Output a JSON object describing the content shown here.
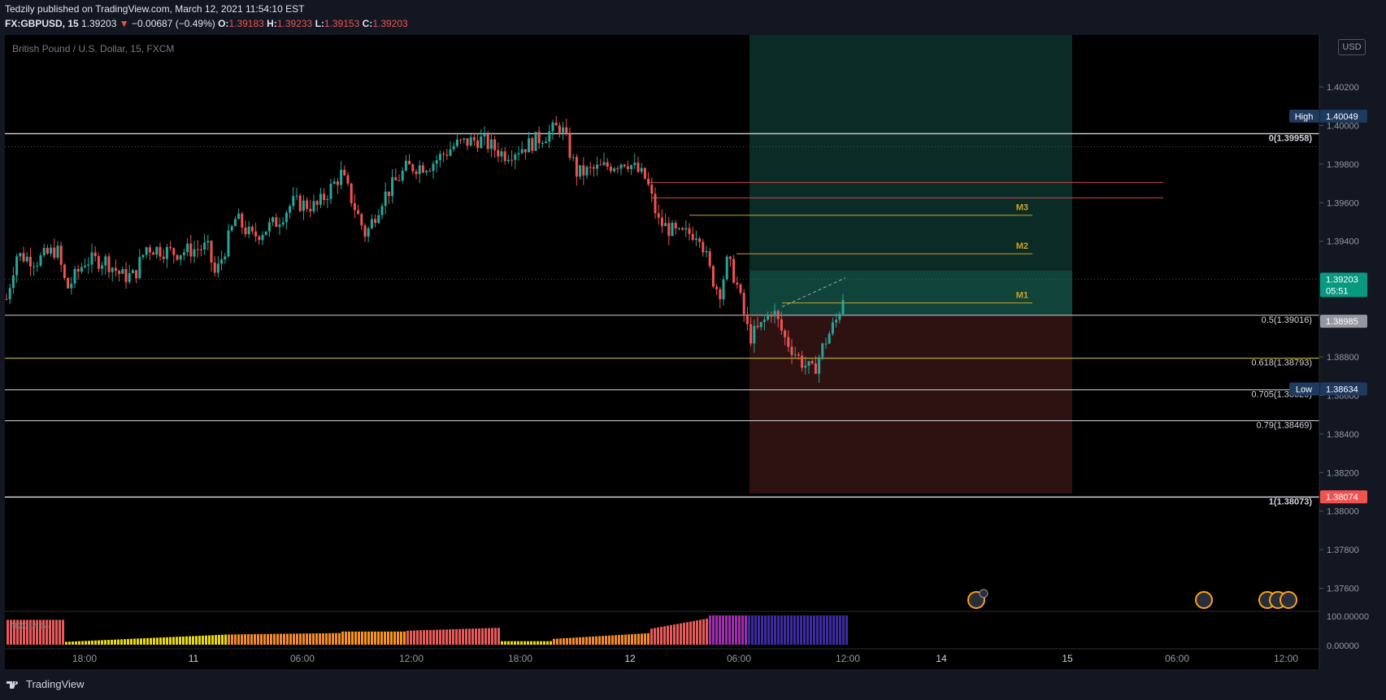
{
  "header": {
    "publisher": "Tedzily",
    "published_on": " published on TradingView.com, March 12, 2021 11:54:10 EST",
    "symbol": "FX:GBPUSD, 15",
    "last": "1.39203",
    "change": "−0.00687 (−0.49%)",
    "o_label": "O:",
    "o_val": "1.39183",
    "h_label": "H:",
    "h_val": "1.39233",
    "l_label": "L:",
    "l_val": "1.39153",
    "c_label": "C:",
    "c_val": "1.39203"
  },
  "legend_title": "British Pound / U.S. Dollar, 15, FXCM",
  "currency": "USD",
  "indicator_label": "ADX 14 14",
  "brand": "TradingView",
  "chart_data": {
    "type": "candlestick",
    "symbol": "FX:GBPUSD",
    "timeframe": "15",
    "ylim": [
      1.3748,
      1.4047
    ],
    "y_ticks": [
      "1.40200",
      "1.40000",
      "1.39800",
      "1.39600",
      "1.39400",
      "1.39000",
      "1.38800",
      "1.38600",
      "1.38400",
      "1.38200",
      "1.38000",
      "1.37800",
      "1.37600"
    ],
    "x_ticks": [
      "18:00",
      "11",
      "06:00",
      "12:00",
      "18:00",
      "12",
      "06:00",
      "12:00",
      "14",
      "15",
      "06:00",
      "12:00"
    ],
    "fib_levels": [
      {
        "label": "0(1.39958)",
        "price": 1.39958,
        "bold": true
      },
      {
        "label": "0.5(1.39016)",
        "price": 1.39016,
        "bold": false
      },
      {
        "label": "0.618(1.38793)",
        "price": 1.38793,
        "bold": false
      },
      {
        "label": "0.705(1.38629)",
        "price": 1.38629,
        "bold": false
      },
      {
        "label": "0.79(1.38469)",
        "price": 1.38469,
        "bold": false
      },
      {
        "label": "1(1.38073)",
        "price": 1.38073,
        "bold": true
      }
    ],
    "targets": [
      {
        "label": "M3",
        "price": 1.39535
      },
      {
        "label": "M2",
        "price": 1.39335
      },
      {
        "label": "M1",
        "price": 1.3908
      }
    ],
    "red_lines": [
      1.39705,
      1.39625
    ],
    "price_tags": [
      {
        "label": "High",
        "value": "1.40049",
        "price": 1.40049,
        "color": "#1e3a5f"
      },
      {
        "label": "",
        "value": "1.39203",
        "extra": "05:51",
        "price": 1.39203,
        "color": "#089981"
      },
      {
        "label": "",
        "value": "1.38985",
        "price": 1.38985,
        "color": "#9598a1"
      },
      {
        "label": "Low",
        "value": "1.38634",
        "price": 1.38634,
        "color": "#1e3a5f"
      },
      {
        "label": "",
        "value": "1.38074",
        "price": 1.38074,
        "color": "#ef5350"
      }
    ],
    "position": {
      "entry": 1.38985,
      "target": 1.404,
      "stop": 1.38073
    },
    "indicator": {
      "ticks": [
        "100.00000",
        "0.00000"
      ]
    },
    "colors": {
      "up": "#26a69a",
      "down": "#ef5350",
      "bg": "#000000"
    }
  }
}
